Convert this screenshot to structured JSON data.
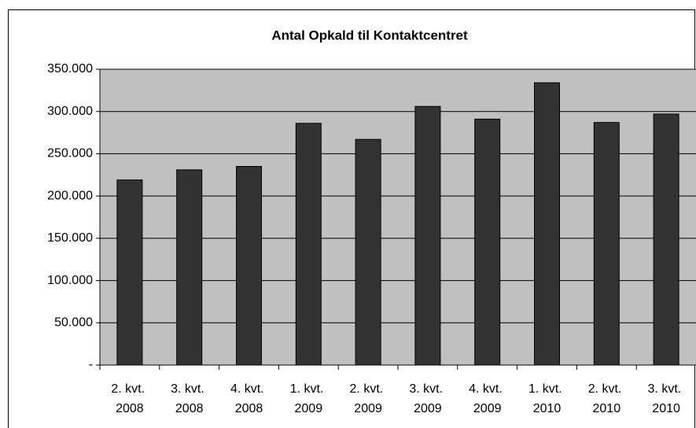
{
  "chart_data": {
    "type": "bar",
    "title": "Antal Opkald til Kontaktcentret",
    "categories": [
      "2. kvt. 2008",
      "3. kvt. 2008",
      "4. kvt. 2008",
      "1. kvt. 2009",
      "2. kvt. 2009",
      "3. kvt. 2009",
      "4. kvt. 2009",
      "1. kvt. 2010",
      "2. kvt. 2010",
      "3. kvt. 2010"
    ],
    "values": [
      219000,
      231000,
      235000,
      286000,
      267000,
      306000,
      291000,
      334000,
      287000,
      297000
    ],
    "color": "#333333",
    "plot_color": "#c0c0c0",
    "ylim": [
      0,
      350000
    ],
    "yticks": [
      {
        "value": 0,
        "label": "-"
      },
      {
        "value": 50000,
        "label": "50.000"
      },
      {
        "value": 100000,
        "label": "100.000"
      },
      {
        "value": 150000,
        "label": "150.000"
      },
      {
        "value": 200000,
        "label": "200.000"
      },
      {
        "value": 250000,
        "label": "250.000"
      },
      {
        "value": 300000,
        "label": "300.000"
      },
      {
        "value": 350000,
        "label": "350.000"
      }
    ],
    "grid": true
  }
}
